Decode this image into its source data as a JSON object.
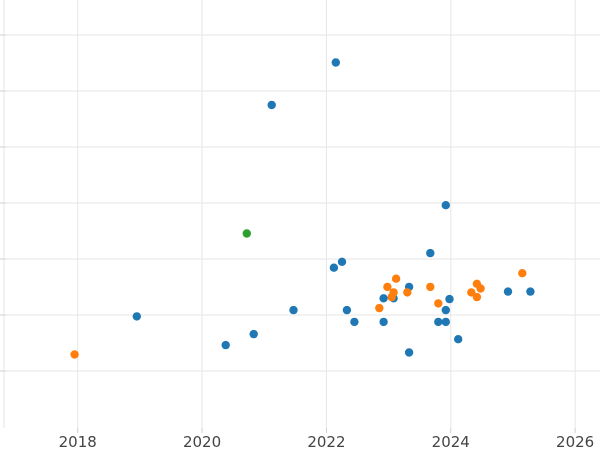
{
  "chart_data": {
    "type": "scatter",
    "title": "",
    "xlabel": "",
    "ylabel": "",
    "xlim": [
      2016.75,
      2026.4
    ],
    "ylim": [
      0,
      1
    ],
    "x_ticks": [
      "2018",
      "2020",
      "2022",
      "2024",
      "2026"
    ],
    "x_tick_values": [
      2018,
      2020,
      2022,
      2024,
      2026
    ],
    "y_gridlines": 7,
    "y_tick_labels_visible": false,
    "grid": true,
    "legend": "none",
    "series": [
      {
        "color": "#1f77b4",
        "points": [
          {
            "x": 2022.15,
            "y": 0.93
          },
          {
            "x": 2021.12,
            "y": 0.822
          },
          {
            "x": 2023.92,
            "y": 0.567
          },
          {
            "x": 2023.67,
            "y": 0.445
          },
          {
            "x": 2022.25,
            "y": 0.423
          },
          {
            "x": 2022.12,
            "y": 0.408
          },
          {
            "x": 2023.33,
            "y": 0.359
          },
          {
            "x": 2022.92,
            "y": 0.33
          },
          {
            "x": 2023.08,
            "y": 0.33
          },
          {
            "x": 2023.98,
            "y": 0.328
          },
          {
            "x": 2021.47,
            "y": 0.3
          },
          {
            "x": 2022.33,
            "y": 0.3
          },
          {
            "x": 2023.92,
            "y": 0.3
          },
          {
            "x": 2018.95,
            "y": 0.284
          },
          {
            "x": 2022.45,
            "y": 0.27
          },
          {
            "x": 2022.92,
            "y": 0.27
          },
          {
            "x": 2023.8,
            "y": 0.27
          },
          {
            "x": 2023.92,
            "y": 0.27
          },
          {
            "x": 2020.83,
            "y": 0.239
          },
          {
            "x": 2024.12,
            "y": 0.226
          },
          {
            "x": 2020.38,
            "y": 0.211
          },
          {
            "x": 2023.33,
            "y": 0.192
          },
          {
            "x": 2024.92,
            "y": 0.347
          },
          {
            "x": 2025.28,
            "y": 0.347
          }
        ]
      },
      {
        "color": "#ff7f0e",
        "points": [
          {
            "x": 2025.15,
            "y": 0.394
          },
          {
            "x": 2023.12,
            "y": 0.38
          },
          {
            "x": 2024.42,
            "y": 0.367
          },
          {
            "x": 2022.98,
            "y": 0.359
          },
          {
            "x": 2023.67,
            "y": 0.359
          },
          {
            "x": 2024.48,
            "y": 0.355
          },
          {
            "x": 2023.08,
            "y": 0.345
          },
          {
            "x": 2023.3,
            "y": 0.345
          },
          {
            "x": 2024.33,
            "y": 0.345
          },
          {
            "x": 2023.05,
            "y": 0.333
          },
          {
            "x": 2024.42,
            "y": 0.333
          },
          {
            "x": 2023.8,
            "y": 0.317
          },
          {
            "x": 2022.85,
            "y": 0.305
          },
          {
            "x": 2017.95,
            "y": 0.187
          }
        ]
      },
      {
        "color": "#2ca02c",
        "points": [
          {
            "x": 2020.72,
            "y": 0.495
          }
        ]
      }
    ]
  }
}
